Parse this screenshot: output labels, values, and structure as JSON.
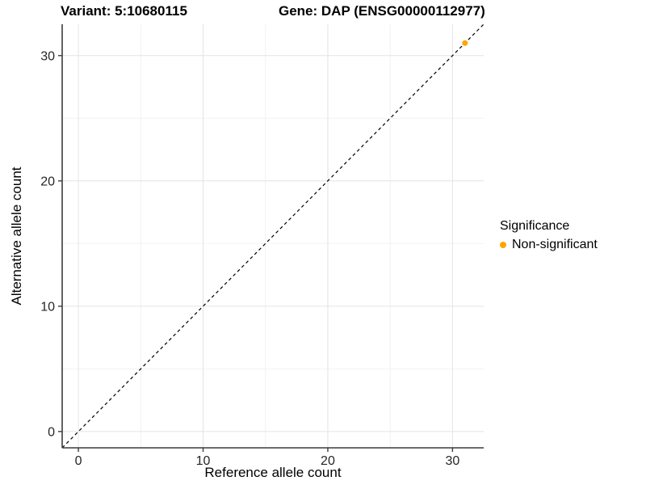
{
  "titles": {
    "variant": "Variant: 5:10680115",
    "gene": "Gene: DAP (ENSG00000112977)"
  },
  "axes": {
    "x_label": "Reference allele count",
    "y_label": "Alternative allele count"
  },
  "legend": {
    "title": "Significance",
    "items": [
      {
        "label": "Non-significant",
        "color": "#FFA500"
      }
    ]
  },
  "chart_data": {
    "type": "scatter",
    "title": "Variant: 5:10680115  /  Gene: DAP (ENSG00000112977)",
    "xlabel": "Reference allele count",
    "ylabel": "Alternative allele count",
    "xlim": [
      -1.3,
      32.5
    ],
    "ylim": [
      -1.3,
      32.5
    ],
    "x_ticks": [
      0,
      10,
      20,
      30
    ],
    "y_ticks": [
      0,
      10,
      20,
      30
    ],
    "x_minor_ticks": [
      5,
      15,
      25
    ],
    "y_minor_ticks": [
      5,
      15,
      25
    ],
    "grid": true,
    "legend_position": "right",
    "series": [
      {
        "name": "Non-significant",
        "color": "#FFA500",
        "points": [
          {
            "x": 31,
            "y": 31
          }
        ]
      }
    ],
    "reference_line": {
      "type": "identity",
      "style": "dashed",
      "color": "#000000"
    }
  },
  "style": {
    "point_color": "#FFA500",
    "grid_major_color": "#e4e4e4",
    "grid_minor_color": "#f2f2f2",
    "axis_line_color": "#3c3c3c",
    "tick_label_color": "#262626"
  }
}
